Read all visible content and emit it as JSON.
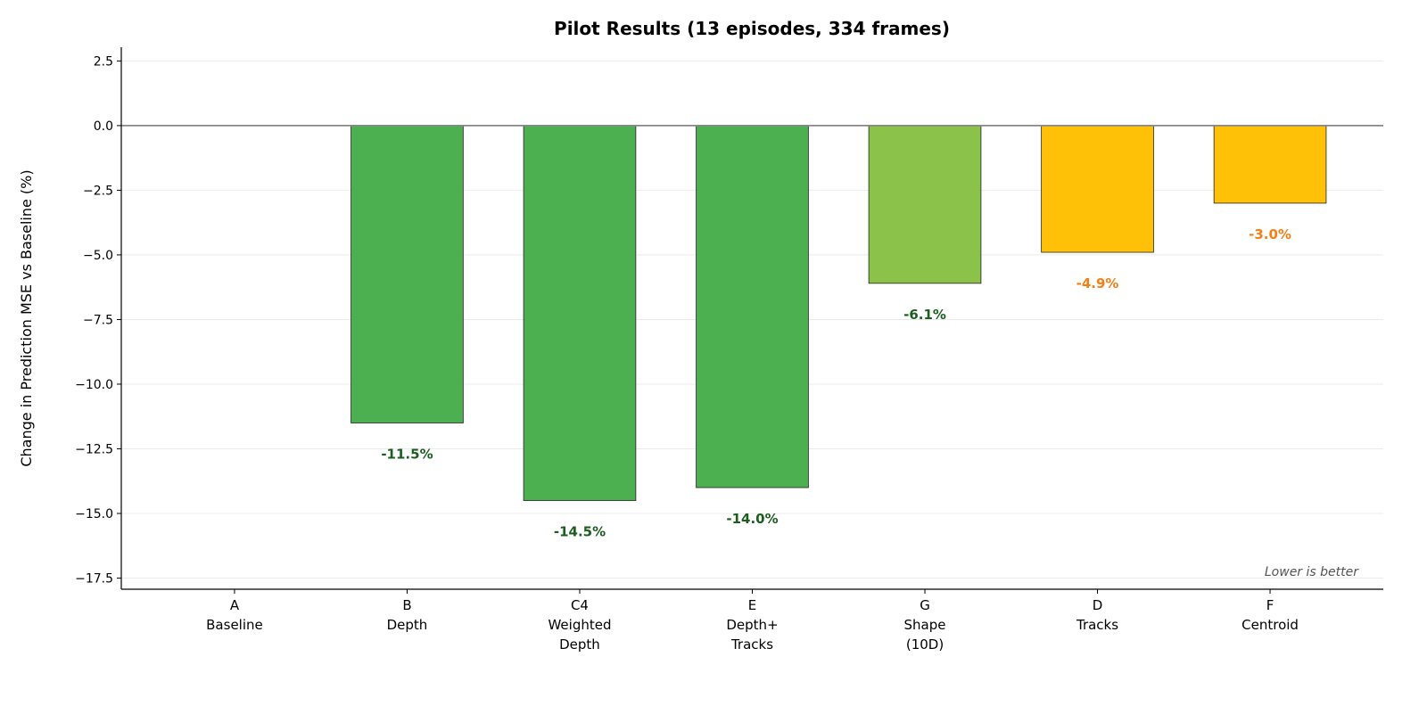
{
  "chart_data": {
    "type": "bar",
    "title": "Pilot Results (13 episodes, 334 frames)",
    "xlabel": "",
    "ylabel": "Change in Prediction MSE vs Baseline (%)",
    "ylim": [
      -17.93,
      3.03
    ],
    "yticks": [
      2.5,
      0.0,
      -2.5,
      -5.0,
      -7.5,
      -10.0,
      -12.5,
      -15.0,
      -17.5
    ],
    "grid": "horizontal",
    "categories": [
      [
        "A",
        "Baseline"
      ],
      [
        "B",
        "Depth"
      ],
      [
        "C4",
        "Weighted",
        "Depth"
      ],
      [
        "E",
        "Depth+",
        "Tracks"
      ],
      [
        "G",
        "Shape",
        "(10D)"
      ],
      [
        "D",
        "Tracks"
      ],
      [
        "F",
        "Centroid"
      ]
    ],
    "values": [
      0.0,
      -11.5,
      -14.5,
      -14.0,
      -6.1,
      -4.9,
      -3.0
    ],
    "data_labels": [
      "",
      "-11.5%",
      "-14.5%",
      "-14.0%",
      "-6.1%",
      "-4.9%",
      "-3.0%"
    ],
    "bar_colors": [
      "#4caf50",
      "#4caf50",
      "#4caf50",
      "#4caf50",
      "#8bc34a",
      "#ffc107",
      "#ffc107"
    ],
    "label_colors": [
      "#1b5e20",
      "#1b5e20",
      "#1b5e20",
      "#1b5e20",
      "#1b5e20",
      "#f57f17",
      "#f57f17"
    ],
    "zero_line_color": "#888888",
    "annotation": "Lower is better"
  }
}
